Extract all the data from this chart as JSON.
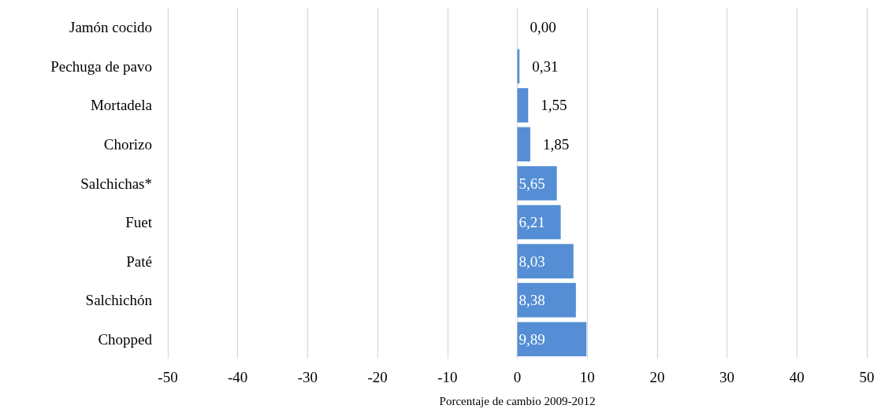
{
  "chart_data": {
    "type": "bar",
    "orientation": "horizontal",
    "xlabel": "Porcentaje de cambio 2009-2012",
    "categories": [
      "Jamón cocido",
      "Pechuga de pavo",
      "Mortadela",
      "Chorizo",
      "Salchichas*",
      "Fuet",
      "Paté",
      "Salchichón",
      "Chopped"
    ],
    "values": [
      0.0,
      0.31,
      1.55,
      1.85,
      5.65,
      6.21,
      8.03,
      8.38,
      9.89
    ],
    "value_labels": [
      "0,00",
      "0,31",
      "1,55",
      "1,85",
      "5,65",
      "6,21",
      "8,03",
      "8,38",
      "9,89"
    ],
    "color": "#558ed5",
    "xlim": [
      -50,
      50
    ],
    "xticks": [
      -50,
      -40,
      -30,
      -20,
      -10,
      0,
      10,
      20,
      30,
      40,
      50
    ],
    "grid": "x"
  }
}
